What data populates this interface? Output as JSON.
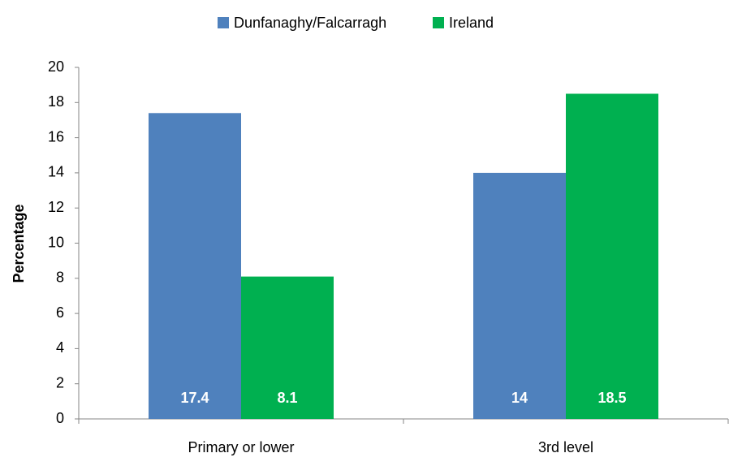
{
  "chart_data": {
    "type": "bar",
    "categories": [
      "Primary or lower",
      "3rd level"
    ],
    "series": [
      {
        "name": "Dunfanaghy/Falcarragh",
        "color": "#4f81bd",
        "values": [
          17.4,
          14
        ]
      },
      {
        "name": "Ireland",
        "color": "#00b050",
        "values": [
          8.1,
          18.5
        ]
      }
    ],
    "ylabel": "Percentage",
    "ylim": [
      0,
      20
    ],
    "yticks": [
      0,
      2,
      4,
      6,
      8,
      10,
      12,
      14,
      16,
      18,
      20
    ],
    "grid": false,
    "legend": "top"
  }
}
